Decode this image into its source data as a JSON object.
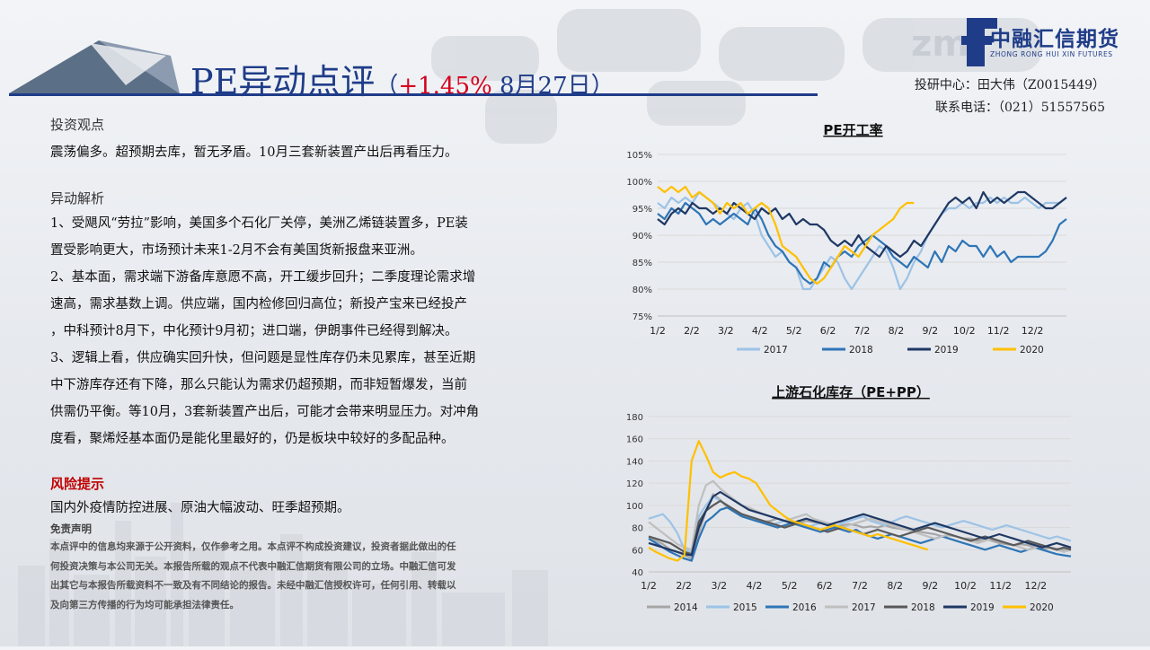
{
  "header": {
    "title_main": "PE异动点评",
    "title_open": "（",
    "title_change": "+1.45%",
    "title_date": " 8月27日）",
    "logo_cn": "中融汇信期货",
    "logo_en": "ZHONG RONG HUI XIN FUTURES",
    "contact_line1": "投研中心：田大伟（Z0015449）",
    "contact_line2": "联系电话：（021）51557565"
  },
  "content": {
    "view_heading": "投资观点",
    "view_text": "震荡偏多。超预期去库，暂无矛盾。10月三套新装置产出后再看压力。",
    "analysis_heading": "异动解析",
    "analysis_lines": [
      "1、受飓风“劳拉”影响，美国多个石化厂关停，美洲乙烯链装置多，PE装",
      "置受影响更大，市场预计未来1-2月不会有美国货新报盘来亚洲。",
      "2、基本面，需求端下游备库意愿不高，开工缓步回升；二季度理论需求增",
      "速高，需求基数上调。供应端，国内检修回归高位；新投产宝来已经投产",
      "，中科预计8月下，中化预计9月初；进口端，伊朗事件已经得到解决。",
      "3、逻辑上看，供应确实回升快，但问题是显性库存仍未见累库，甚至近期",
      "中下游库存还有下降，那么只能认为需求仍超预期，而非短暂爆发，当前",
      "供需仍平衡。等10月，3套新装置产出后，可能才会带来明显压力。对冲角",
      "度看，聚烯烃基本面仍是能化里最好的，仍是板块中较好的多配品种。"
    ],
    "risk_heading": "风险提示",
    "risk_text": "国内外疫情防控进展、原油大幅波动、旺季超预期。",
    "disclaimer_heading": "免责声明",
    "disclaimer_lines": [
      "本点评中的信息均来源于公开资料，仅作参考之用。本点评不构成投资建议，投资者据此做出的任",
      "何投资决策与本公司无关。本报告所载的观点不代表中融汇信期货有限公司的立场。中融汇信可发",
      "出其它与本报告所载资料不一致及有不同结论的报告。未经中融汇信授权许可，任何引用、转载以",
      "及向第三方传播的行为均可能承担法律责任。"
    ]
  },
  "colors": {
    "brand": "#1f3c88",
    "risk": "#c00000",
    "change": "#d6001c"
  },
  "chart_data": [
    {
      "type": "line",
      "title": "PE开工率",
      "x_ticks": [
        "1/2",
        "2/2",
        "3/2",
        "4/2",
        "5/2",
        "6/2",
        "7/2",
        "8/2",
        "9/2",
        "10/2",
        "11/2",
        "12/2"
      ],
      "y_ticks": [
        "75%",
        "80%",
        "85%",
        "90%",
        "95%",
        "100%",
        "105%"
      ],
      "ylim": [
        75,
        105
      ],
      "legend_position": "bottom",
      "series": [
        {
          "name": "2017",
          "color": "#9dc3e6",
          "values": [
            96,
            95,
            97,
            96,
            97,
            96,
            98,
            97,
            96,
            95,
            94,
            93,
            95,
            96,
            94,
            90,
            88,
            86,
            87,
            85,
            84,
            80,
            80,
            82,
            84,
            86,
            85,
            82,
            80,
            82,
            84,
            86,
            88,
            87,
            84,
            80,
            82,
            85,
            87,
            90,
            92,
            94,
            95,
            95,
            96,
            95,
            96,
            96,
            97,
            96,
            97,
            96,
            96,
            97,
            96,
            95,
            96,
            96,
            96,
            97
          ]
        },
        {
          "name": "2018",
          "color": "#2e75b6",
          "values": [
            94,
            93,
            95,
            94,
            96,
            95,
            94,
            92,
            93,
            92,
            93,
            94,
            93,
            92,
            95,
            93,
            90,
            88,
            87,
            85,
            84,
            82,
            81,
            82,
            85,
            84,
            86,
            87,
            86,
            88,
            89,
            90,
            89,
            88,
            86,
            85,
            84,
            86,
            85,
            84,
            87,
            85,
            88,
            87,
            89,
            88,
            88,
            86,
            88,
            86,
            87,
            85,
            86,
            86,
            86,
            86,
            87,
            89,
            92,
            93
          ]
        },
        {
          "name": "2019",
          "color": "#1f3864",
          "values": [
            93,
            92,
            94,
            95,
            94,
            96,
            95,
            95,
            94,
            95,
            94,
            96,
            95,
            94,
            93,
            95,
            94,
            95,
            93,
            94,
            92,
            93,
            92,
            92,
            91,
            89,
            88,
            89,
            88,
            90,
            88,
            87,
            86,
            88,
            87,
            86,
            87,
            89,
            88,
            90,
            92,
            94,
            96,
            97,
            96,
            97,
            95,
            98,
            96,
            97,
            96,
            97,
            98,
            98,
            97,
            96,
            95,
            95,
            96,
            97
          ]
        },
        {
          "name": "2020",
          "color": "#ffc000",
          "values": [
            99,
            98,
            99,
            98,
            99,
            97,
            98,
            97,
            96,
            94,
            96,
            95,
            96,
            94,
            95,
            96,
            95,
            92,
            88,
            87,
            86,
            84,
            82,
            81,
            82,
            84,
            86,
            88,
            87,
            86,
            88,
            90,
            91,
            92,
            93,
            95,
            96,
            96
          ]
        }
      ]
    },
    {
      "type": "line",
      "title": "上游石化库存（PE+PP）",
      "x_ticks": [
        "1/2",
        "2/2",
        "3/2",
        "4/2",
        "5/2",
        "6/2",
        "7/2",
        "8/2",
        "9/2",
        "10/2",
        "11/2",
        "12/2"
      ],
      "y_ticks": [
        "40",
        "60",
        "80",
        "100",
        "120",
        "140",
        "160",
        "180"
      ],
      "ylim": [
        40,
        180
      ],
      "legend_position": "bottom",
      "series": [
        {
          "name": "2014",
          "color": "#a6a6a6",
          "values": [
            72,
            68,
            65,
            60,
            58,
            55,
            52,
            75,
            95,
            110,
            105,
            98,
            95,
            92,
            90,
            88,
            85,
            86,
            88,
            86,
            85,
            84,
            86,
            85,
            84,
            82,
            80,
            82,
            83,
            82,
            80,
            81,
            80,
            82,
            80,
            79,
            78,
            77,
            76,
            75,
            74,
            72,
            73,
            72,
            70,
            70,
            68,
            70,
            68,
            66,
            65,
            64,
            65,
            64,
            62,
            60,
            62,
            61,
            60,
            62
          ]
        },
        {
          "name": "2015",
          "color": "#9dc3e6",
          "values": [
            88,
            90,
            92,
            85,
            75,
            60,
            58,
            90,
            100,
            108,
            104,
            100,
            95,
            92,
            90,
            88,
            85,
            82,
            84,
            86,
            84,
            82,
            80,
            82,
            84,
            82,
            80,
            84,
            86,
            88,
            90,
            86,
            84,
            82,
            85,
            88,
            90,
            88,
            86,
            84,
            82,
            80,
            82,
            84,
            86,
            84,
            82,
            80,
            78,
            80,
            82,
            80,
            78,
            76,
            74,
            72,
            70,
            72,
            70,
            68
          ]
        },
        {
          "name": "2016",
          "color": "#2e75b6",
          "values": [
            70,
            66,
            62,
            58,
            55,
            52,
            50,
            70,
            85,
            90,
            96,
            98,
            94,
            90,
            88,
            86,
            84,
            82,
            80,
            82,
            84,
            82,
            80,
            78,
            76,
            78,
            80,
            78,
            76,
            78,
            74,
            72,
            70,
            72,
            74,
            72,
            70,
            68,
            66,
            68,
            70,
            72,
            70,
            68,
            66,
            64,
            62,
            60,
            62,
            64,
            62,
            60,
            58,
            60,
            62,
            60,
            58,
            56,
            55,
            54
          ]
        },
        {
          "name": "2017",
          "color": "#bfbfbf",
          "values": [
            85,
            80,
            75,
            70,
            65,
            62,
            60,
            100,
            118,
            122,
            115,
            110,
            105,
            100,
            98,
            95,
            92,
            90,
            88,
            86,
            88,
            90,
            92,
            88,
            86,
            84,
            82,
            80,
            82,
            84,
            86,
            88,
            86,
            84,
            82,
            80,
            78,
            76,
            74,
            72,
            70,
            72,
            74,
            72,
            70,
            68,
            66,
            68,
            70,
            68,
            66,
            64,
            62,
            60,
            62,
            64,
            62,
            60,
            58,
            60
          ]
        },
        {
          "name": "2018",
          "color": "#595959",
          "values": [
            72,
            70,
            68,
            66,
            62,
            58,
            56,
            85,
            95,
            100,
            104,
            100,
            96,
            92,
            90,
            88,
            86,
            84,
            82,
            80,
            82,
            84,
            82,
            80,
            78,
            76,
            78,
            80,
            78,
            76,
            74,
            76,
            78,
            76,
            74,
            72,
            74,
            76,
            78,
            80,
            78,
            76,
            74,
            72,
            70,
            68,
            70,
            72,
            70,
            68,
            66,
            64,
            66,
            68,
            66,
            64,
            62,
            60,
            62,
            60
          ]
        },
        {
          "name": "2019",
          "color": "#1f3864",
          "values": [
            66,
            64,
            62,
            60,
            58,
            56,
            55,
            80,
            95,
            108,
            112,
            108,
            104,
            100,
            96,
            94,
            92,
            90,
            88,
            86,
            84,
            86,
            88,
            86,
            84,
            82,
            84,
            86,
            88,
            90,
            92,
            90,
            88,
            86,
            84,
            82,
            80,
            78,
            80,
            82,
            84,
            82,
            80,
            78,
            76,
            74,
            72,
            70,
            72,
            74,
            72,
            70,
            68,
            66,
            64,
            62,
            64,
            66,
            64,
            62
          ]
        },
        {
          "name": "2020",
          "color": "#ffc000",
          "values": [
            62,
            58,
            55,
            52,
            50,
            55,
            140,
            158,
            145,
            130,
            125,
            128,
            130,
            126,
            124,
            120,
            110,
            100,
            95,
            90,
            86,
            84,
            82,
            80,
            78,
            80,
            82,
            80,
            78,
            76,
            74,
            72,
            74,
            72,
            70,
            68,
            66,
            64,
            62,
            60
          ]
        }
      ]
    }
  ]
}
